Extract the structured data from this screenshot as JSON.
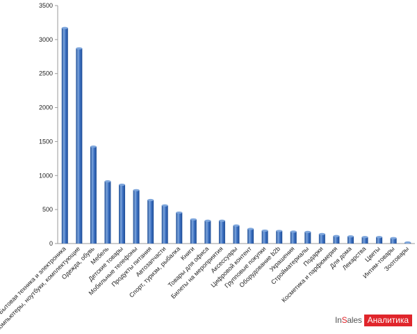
{
  "chart_data": {
    "type": "bar",
    "categories": [
      "Бытовая техника и электроника",
      "Компьютеры, ноутбуки, комплектующие",
      "Одежда, обувь",
      "Мебель",
      "Детские товары",
      "Мобильные телефоны",
      "Продукты питания",
      "Автозапчасти",
      "Спорт, туризм, рыбалка",
      "Книги",
      "Товары для офиса",
      "Билеты на мероприятия",
      "Аксессуары",
      "Цифровой контент",
      "Групповые покупки",
      "Оборудование b2b",
      "Украшения",
      "Стройматериалы",
      "Подарки",
      "Косметика и парфюмерия",
      "Для дома",
      "Лекарства",
      "Цветы",
      "Интим-товары",
      "Зоотовары"
    ],
    "values": [
      3170,
      2870,
      1425,
      915,
      865,
      785,
      640,
      560,
      455,
      355,
      335,
      335,
      265,
      215,
      190,
      185,
      175,
      170,
      140,
      110,
      105,
      95,
      95,
      80,
      15
    ],
    "yticks": [
      "0",
      "500",
      "1000",
      "1500",
      "2000",
      "2500",
      "3000",
      "3500"
    ],
    "ylim": [
      0,
      3500
    ],
    "grid": false,
    "legend": "none",
    "colors": {
      "bar_light": "#7ea6dc",
      "bar_mid": "#3f73c4",
      "bar_dark": "#1e4d96",
      "axis": "#999999"
    }
  },
  "watermark": {
    "brand_prefix": "In",
    "brand_accent": "S",
    "brand_suffix": "ales",
    "badge": "Аналитика",
    "color": "#e0252b"
  }
}
